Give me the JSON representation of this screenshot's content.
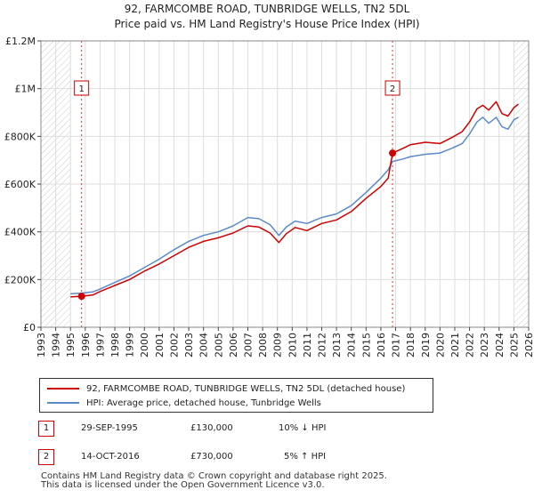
{
  "chart_data": {
    "type": "line",
    "title": "92, FARMCOMBE ROAD, TUNBRIDGE WELLS, TN2 5DL",
    "subtitle": "Price paid vs. HM Land Registry's House Price Index (HPI)",
    "xlim": [
      1993,
      2026
    ],
    "ylim": [
      0,
      1200000
    ],
    "x_ticks": [
      "1993",
      "1994",
      "1995",
      "1996",
      "1997",
      "1998",
      "1999",
      "2000",
      "2001",
      "2002",
      "2003",
      "2004",
      "2005",
      "2006",
      "2007",
      "2008",
      "2009",
      "2010",
      "2011",
      "2012",
      "2013",
      "2014",
      "2015",
      "2016",
      "2017",
      "2018",
      "2019",
      "2020",
      "2021",
      "2022",
      "2023",
      "2024",
      "2025",
      "2026"
    ],
    "y_ticks": [
      {
        "value": 0,
        "label": "£0"
      },
      {
        "value": 200000,
        "label": "£200K"
      },
      {
        "value": 400000,
        "label": "£400K"
      },
      {
        "value": 600000,
        "label": "£600K"
      },
      {
        "value": 800000,
        "label": "£800K"
      },
      {
        "value": 1000000,
        "label": "£1M"
      },
      {
        "value": 1200000,
        "label": "£1.2M"
      }
    ],
    "grid": true,
    "hatched_ranges": [
      [
        1993,
        1995.0
      ],
      [
        2025.0,
        2026
      ]
    ],
    "series": [
      {
        "name": "92, FARMCOMBE ROAD, TUNBRIDGE WELLS, TN2 5DL (detached house)",
        "color": "#cc0000",
        "x": [
          1995.0,
          1995.75,
          1996.5,
          1997.0,
          1998.0,
          1999.0,
          2000.0,
          2001.0,
          2002.0,
          2003.0,
          2004.0,
          2005.0,
          2006.0,
          2007.0,
          2007.75,
          2008.5,
          2009.1,
          2009.6,
          2010.2,
          2011.0,
          2012.0,
          2013.0,
          2014.0,
          2015.0,
          2016.0,
          2016.5,
          2016.79,
          2017.5,
          2018.0,
          2019.0,
          2020.0,
          2020.8,
          2021.5,
          2022.0,
          2022.5,
          2022.9,
          2023.3,
          2023.8,
          2024.2,
          2024.6,
          2025.0,
          2025.3
        ],
        "y": [
          127000,
          130000,
          135000,
          150000,
          175000,
          200000,
          235000,
          265000,
          300000,
          335000,
          360000,
          375000,
          395000,
          425000,
          420000,
          395000,
          355000,
          392000,
          418000,
          405000,
          435000,
          450000,
          485000,
          540000,
          590000,
          625000,
          730000,
          750000,
          765000,
          775000,
          770000,
          795000,
          820000,
          860000,
          915000,
          930000,
          910000,
          945000,
          895000,
          885000,
          920000,
          935000
        ]
      },
      {
        "name": "HPI: Average price, detached house, Tunbridge Wells",
        "color": "#5b8ac8",
        "x": [
          1995.0,
          1995.75,
          1996.5,
          1997.0,
          1998.0,
          1999.0,
          2000.0,
          2001.0,
          2002.0,
          2003.0,
          2004.0,
          2005.0,
          2006.0,
          2007.0,
          2007.75,
          2008.5,
          2009.1,
          2009.6,
          2010.2,
          2011.0,
          2012.0,
          2013.0,
          2014.0,
          2015.0,
          2016.0,
          2016.5,
          2016.79,
          2017.5,
          2018.0,
          2019.0,
          2020.0,
          2020.8,
          2021.5,
          2022.0,
          2022.5,
          2022.9,
          2023.3,
          2023.8,
          2024.2,
          2024.6,
          2025.0,
          2025.3
        ],
        "y": [
          140000,
          143000,
          148000,
          160000,
          188000,
          215000,
          250000,
          285000,
          325000,
          360000,
          385000,
          400000,
          425000,
          460000,
          455000,
          430000,
          385000,
          420000,
          445000,
          435000,
          460000,
          475000,
          510000,
          565000,
          625000,
          660000,
          695000,
          705000,
          715000,
          725000,
          730000,
          750000,
          770000,
          810000,
          860000,
          880000,
          855000,
          880000,
          840000,
          830000,
          870000,
          880000
        ]
      }
    ],
    "sales": [
      {
        "marker": "1",
        "x": 1995.75,
        "y": 130000
      },
      {
        "marker": "2",
        "x": 2016.79,
        "y": 730000
      }
    ]
  },
  "legend": {
    "items": [
      {
        "label": "92, FARMCOMBE ROAD, TUNBRIDGE WELLS, TN2 5DL (detached house)",
        "color": "#cc0000"
      },
      {
        "label": "HPI: Average price, detached house, Tunbridge Wells",
        "color": "#5b8ac8"
      }
    ]
  },
  "transactions": [
    {
      "marker": "1",
      "date": "29-SEP-1995",
      "price": "£130,000",
      "hpi": "10% ↓ HPI"
    },
    {
      "marker": "2",
      "date": "14-OCT-2016",
      "price": "£730,000",
      "hpi": "5% ↑ HPI"
    }
  ],
  "footer": {
    "line1": "Contains HM Land Registry data © Crown copyright and database right 2025.",
    "line2": "This data is licensed under the Open Government Licence v3.0."
  }
}
